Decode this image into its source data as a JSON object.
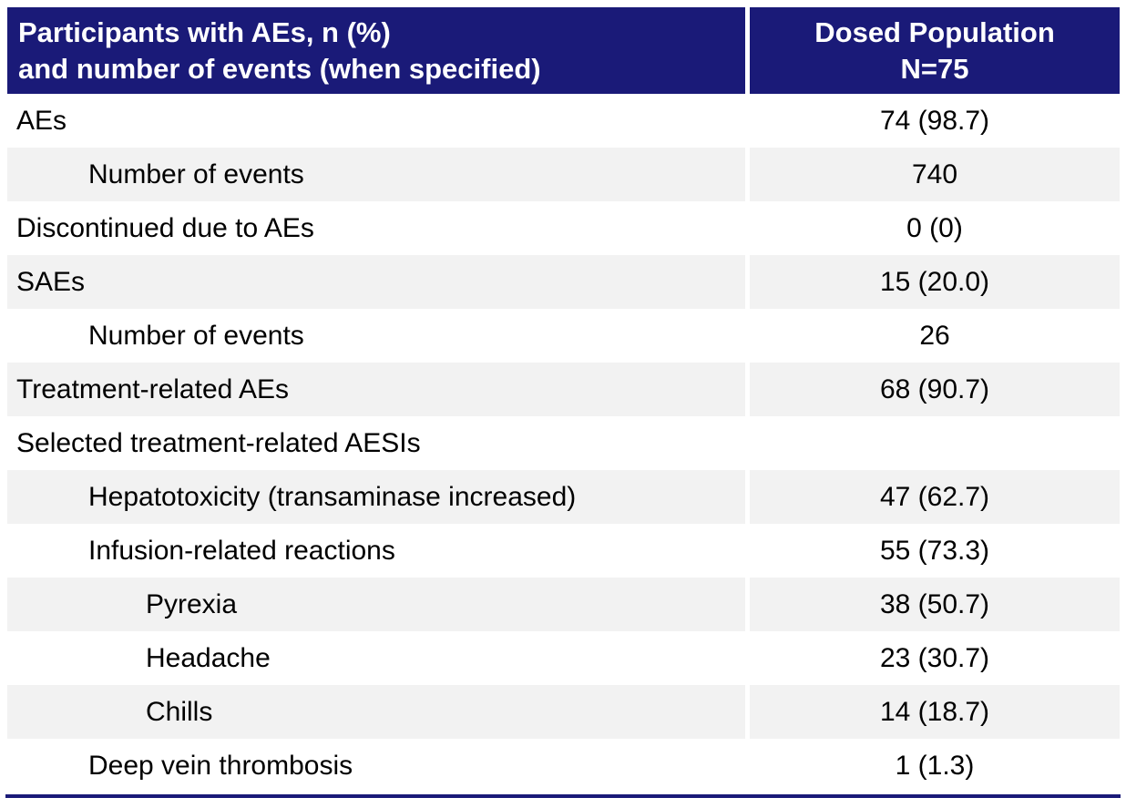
{
  "table": {
    "header": {
      "col1_line1": "Participants with AEs, n (%)",
      "col1_line2": "and number of events (when specified)",
      "col2_line1": "Dosed Population",
      "col2_line2": "N=75"
    },
    "rows": [
      {
        "label": "AEs",
        "indent": 0,
        "value": "74 (98.7)"
      },
      {
        "label": "Number of events",
        "indent": 1,
        "value": "740"
      },
      {
        "label": "Discontinued due to AEs",
        "indent": 0,
        "value": "0 (0)"
      },
      {
        "label": "SAEs",
        "indent": 0,
        "value": "15 (20.0)"
      },
      {
        "label": "Number of events",
        "indent": 1,
        "value": "26"
      },
      {
        "label": "Treatment-related AEs",
        "indent": 0,
        "value": "68 (90.7)"
      },
      {
        "label": "Selected treatment-related AESIs",
        "indent": 0,
        "value": ""
      },
      {
        "label": "Hepatotoxicity (transaminase increased)",
        "indent": 1,
        "value": "47 (62.7)"
      },
      {
        "label": "Infusion-related reactions",
        "indent": 1,
        "value": "55 (73.3)"
      },
      {
        "label": "Pyrexia",
        "indent": 2,
        "value": "38 (50.7)"
      },
      {
        "label": "Headache",
        "indent": 2,
        "value": "23 (30.7)"
      },
      {
        "label": "Chills",
        "indent": 2,
        "value": "14 (18.7)"
      },
      {
        "label": "Deep vein thrombosis",
        "indent": 1,
        "value": "1 (1.3)"
      }
    ],
    "colors": {
      "header_bg": "#1a1a78",
      "header_text": "#ffffff",
      "row_alt_bg": "#f2f2f2",
      "body_text": "#000000",
      "bottom_rule": "#1a1a78"
    }
  }
}
